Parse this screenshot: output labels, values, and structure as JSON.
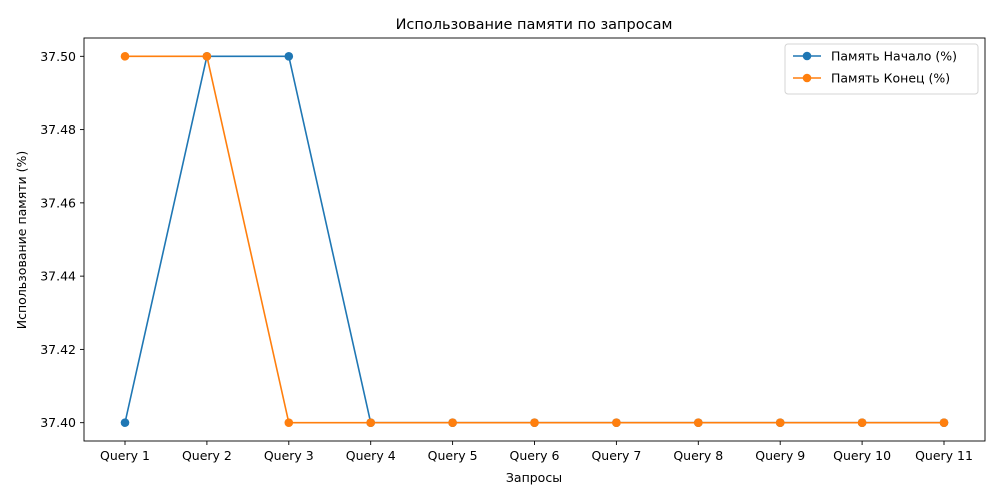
{
  "chart_data": {
    "type": "line",
    "title": "Использование памяти по запросам",
    "xlabel": "Запросы",
    "ylabel": "Использование памяти (%)",
    "categories": [
      "Query 1",
      "Query 2",
      "Query 3",
      "Query 4",
      "Query 5",
      "Query 6",
      "Query 7",
      "Query 8",
      "Query 9",
      "Query 10",
      "Query 11"
    ],
    "ylim": [
      37.395,
      37.505
    ],
    "yticks": [
      37.4,
      37.42,
      37.44,
      37.46,
      37.48,
      37.5
    ],
    "ytick_labels": [
      "37.40",
      "37.42",
      "37.44",
      "37.46",
      "37.48",
      "37.50"
    ],
    "grid": false,
    "legend_position": "top-right",
    "series": [
      {
        "name": "Память Начало (%)",
        "color": "#1f77b4",
        "marker": "circle",
        "values": [
          37.4,
          37.5,
          37.5,
          37.4,
          37.4,
          37.4,
          37.4,
          37.4,
          37.4,
          37.4,
          37.4
        ]
      },
      {
        "name": "Память Конец (%)",
        "color": "#ff7f0e",
        "marker": "circle",
        "values": [
          37.5,
          37.5,
          37.4,
          37.4,
          37.4,
          37.4,
          37.4,
          37.4,
          37.4,
          37.4,
          37.4
        ]
      }
    ]
  }
}
